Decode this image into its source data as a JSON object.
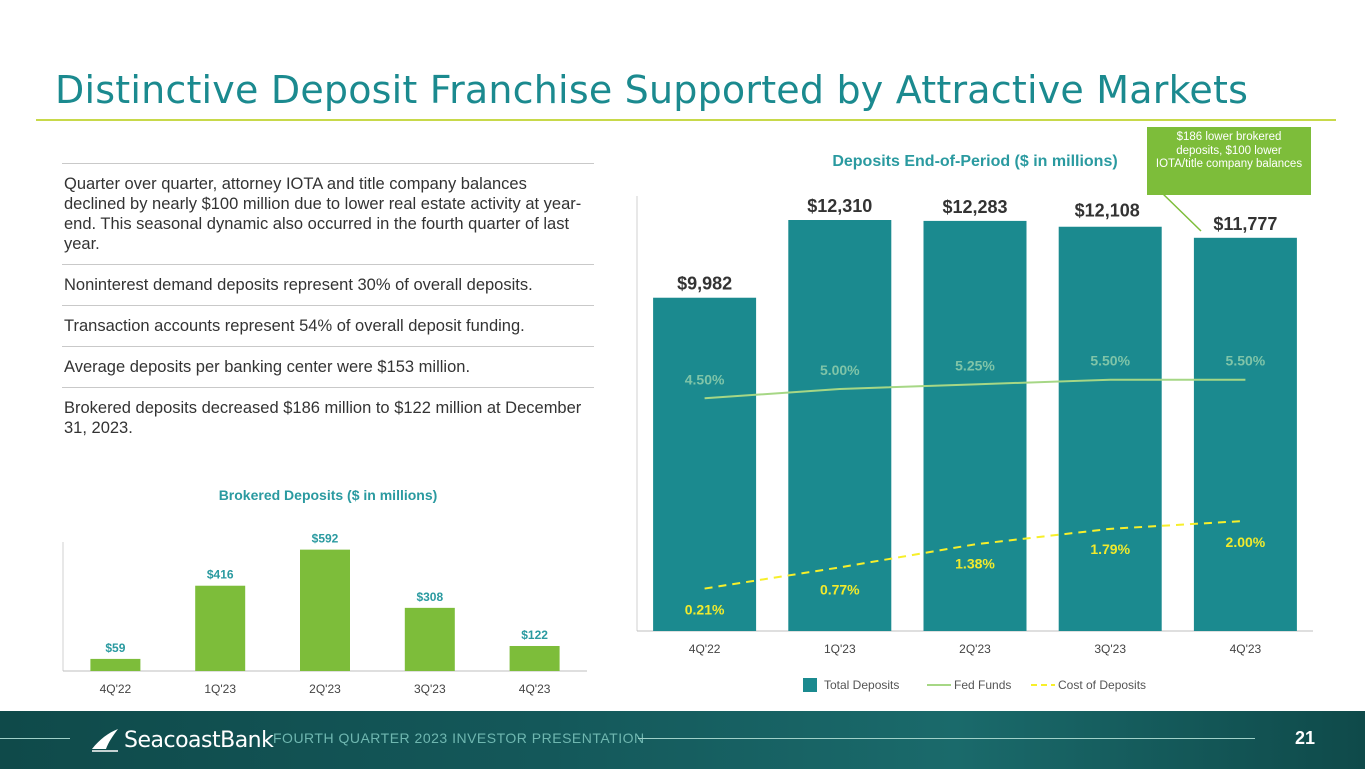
{
  "slide": {
    "title": "Distinctive Deposit Franchise Supported by Attractive Markets",
    "bullets": [
      "Quarter over quarter, attorney IOTA and title company balances declined by nearly $100 million due to lower real estate activity at year-end. This seasonal dynamic also occurred in the fourth quarter of last year.",
      "Noninterest demand deposits represent 30% of overall deposits.",
      "Transaction accounts represent 54% of overall deposit funding.",
      "Average deposits per banking center were $153 million.",
      "Brokered deposits decreased $186 million to $122 million at December 31, 2023."
    ],
    "callout": "$186 lower brokered deposits, $100 lower IOTA/title company balances",
    "footer": {
      "brand": "SeacoastBank",
      "text": "FOURTH QUARTER 2023 INVESTOR PRESENTATION",
      "page": "21"
    },
    "colors": {
      "teal": "#1b8a8f",
      "green": "#7dbd3a",
      "fed_funds": "#a6d785",
      "cost_of_deposits": "#f7ef2a"
    }
  },
  "chart_data": [
    {
      "type": "bar",
      "title": "Brokered Deposits ($ in millions)",
      "categories": [
        "4Q'22",
        "1Q'23",
        "2Q'23",
        "3Q'23",
        "4Q'23"
      ],
      "values": [
        59,
        416,
        592,
        308,
        122
      ],
      "labels": [
        "$59",
        "$416",
        "$592",
        "$308",
        "$122"
      ],
      "ylim": [
        0,
        600
      ],
      "grid": false,
      "color": "#7dbd3a"
    },
    {
      "type": "bar",
      "title": "Deposits End-of-Period ($ in millions)",
      "categories": [
        "4Q'22",
        "1Q'23",
        "2Q'23",
        "3Q'23",
        "4Q'23"
      ],
      "series": [
        {
          "name": "Total Deposits",
          "type": "bar",
          "values": [
            9982,
            12310,
            12283,
            12108,
            11777
          ],
          "labels": [
            "$9,982",
            "$12,310",
            "$12,283",
            "$12,108",
            "$11,777"
          ]
        },
        {
          "name": "Fed Funds",
          "type": "line",
          "values": [
            4.5,
            5.0,
            5.25,
            5.5,
            5.5
          ],
          "labels": [
            "4.50%",
            "5.00%",
            "5.25%",
            "5.50%",
            "5.50%"
          ]
        },
        {
          "name": "Cost of Deposits",
          "type": "line-dashed",
          "values": [
            0.21,
            0.77,
            1.38,
            1.79,
            2.0
          ],
          "labels": [
            "0.21%",
            "0.77%",
            "1.38%",
            "1.79%",
            "2.00%"
          ]
        }
      ],
      "ylim": [
        0,
        13000
      ],
      "y2lim": [
        -0.5,
        10.3
      ],
      "legend": "bottom",
      "grid": false
    }
  ]
}
